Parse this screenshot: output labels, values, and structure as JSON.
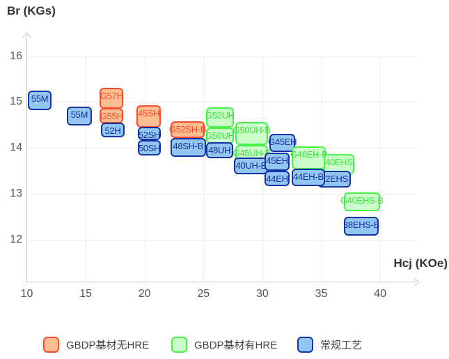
{
  "titles": {
    "y": "Br (KGs)",
    "x": "Hcj (KOe)"
  },
  "axes": {
    "x_ticks": [
      10,
      15,
      20,
      25,
      30,
      35,
      40
    ],
    "y_ticks": [
      16,
      15,
      14,
      13,
      12
    ]
  },
  "series": {
    "gbdp_no_hre": {
      "label": "GBDP基材无HRE",
      "fill": "#ffbe92",
      "stroke": "#ff4a2c",
      "text_color": "#f84b28"
    },
    "gbdp_hre": {
      "label": "GBDP基材有HRE",
      "fill": "#ccfecc",
      "stroke": "#49f249",
      "text_color": "#3ae53a"
    },
    "conventional": {
      "label": "常规工艺",
      "fill": "#93c7f3",
      "stroke": "#1732a3",
      "text_color": "#15309c"
    }
  },
  "legend_order": [
    "gbdp_no_hre",
    "gbdp_hre",
    "conventional"
  ],
  "chart_data": {
    "type": "scatter",
    "title": "",
    "xlabel": "Hcj (KOe)",
    "ylabel": "Br (KGs)",
    "xlim": [
      10,
      43.5
    ],
    "ylim": [
      11.1,
      16.4
    ],
    "grid": true,
    "legend_position": "bottom",
    "items": [
      {
        "label": "55M",
        "series": "conventional",
        "hcj": [
          10.1,
          12.1
        ],
        "br": [
          14.83,
          15.25
        ]
      },
      {
        "label": "55M",
        "series": "conventional",
        "hcj": [
          13.4,
          15.5
        ],
        "br": [
          14.49,
          14.9
        ]
      },
      {
        "label": "G57H",
        "series": "gbdp_no_hre",
        "hcj": [
          16.2,
          18.2
        ],
        "br": [
          14.86,
          15.31
        ]
      },
      {
        "label": "G55H",
        "series": "gbdp_no_hre",
        "hcj": [
          16.2,
          18.2
        ],
        "br": [
          14.54,
          14.87
        ]
      },
      {
        "label": "52H",
        "series": "conventional",
        "hcj": [
          16.3,
          18.3
        ],
        "br": [
          14.23,
          14.55
        ]
      },
      {
        "label": "45SH",
        "series": "gbdp_no_hre",
        "hcj": [
          19.3,
          21.4
        ],
        "br": [
          14.45,
          14.93
        ]
      },
      {
        "label": "52SH",
        "series": "conventional",
        "hcj": [
          19.4,
          21.4
        ],
        "br": [
          14.17,
          14.46
        ]
      },
      {
        "label": "50SH",
        "series": "conventional",
        "hcj": [
          19.4,
          21.4
        ],
        "br": [
          13.83,
          14.17
        ]
      },
      {
        "label": "G52SH-B",
        "series": "gbdp_no_hre",
        "hcj": [
          22.2,
          25.1
        ],
        "br": [
          14.21,
          14.58
        ]
      },
      {
        "label": "48SH-B",
        "series": "conventional",
        "hcj": [
          22.2,
          25.2
        ],
        "br": [
          13.81,
          14.22
        ]
      },
      {
        "label": "G52UH",
        "series": "gbdp_hre",
        "hcj": [
          25.2,
          27.6
        ],
        "br": [
          14.44,
          14.88
        ]
      },
      {
        "label": "G50UH",
        "series": "gbdp_hre",
        "hcj": [
          25.2,
          27.6
        ],
        "br": [
          14.1,
          14.45
        ]
      },
      {
        "label": "48UH",
        "series": "conventional",
        "hcj": [
          25.2,
          27.5
        ],
        "br": [
          13.78,
          14.12
        ]
      },
      {
        "label": "G50UH-B",
        "series": "gbdp_hre",
        "hcj": [
          27.7,
          30.5
        ],
        "br": [
          14.06,
          14.57
        ]
      },
      {
        "label": "G45UH-B",
        "series": "gbdp_hre",
        "hcj": [
          27.7,
          30.5
        ],
        "br": [
          13.6,
          14.06
        ]
      },
      {
        "label": "40UH-B",
        "series": "conventional",
        "hcj": [
          27.6,
          30.5
        ],
        "br": [
          13.42,
          13.79
        ]
      },
      {
        "label": "G45EH",
        "series": "conventional",
        "hcj": [
          30.6,
          32.8
        ],
        "br": [
          13.91,
          14.31
        ]
      },
      {
        "label": "45EH",
        "series": "conventional",
        "hcj": [
          30.2,
          32.3
        ],
        "br": [
          13.5,
          13.89
        ]
      },
      {
        "label": "44EH",
        "series": "conventional",
        "hcj": [
          30.2,
          32.3
        ],
        "br": [
          13.16,
          13.5
        ]
      },
      {
        "label": "G46EH-B",
        "series": "gbdp_hre",
        "hcj": [
          32.5,
          35.4
        ],
        "br": [
          13.53,
          14.03
        ]
      },
      {
        "label": "40EHS",
        "series": "gbdp_hre",
        "hcj": [
          35.2,
          37.8
        ],
        "br": [
          13.42,
          13.86
        ]
      },
      {
        "label": "42EHS",
        "series": "conventional",
        "hcj": [
          34.7,
          37.5
        ],
        "br": [
          13.13,
          13.5
        ]
      },
      {
        "label": "44EH-B",
        "series": "conventional",
        "hcj": [
          32.5,
          35.3
        ],
        "br": [
          13.17,
          13.54
        ]
      },
      {
        "label": "G40EHS-B",
        "series": "gbdp_hre",
        "hcj": [
          36.9,
          40.0
        ],
        "br": [
          12.62,
          13.03
        ]
      },
      {
        "label": "38EHS-B",
        "series": "conventional",
        "hcj": [
          36.9,
          39.9
        ],
        "br": [
          12.08,
          12.5
        ]
      }
    ]
  }
}
